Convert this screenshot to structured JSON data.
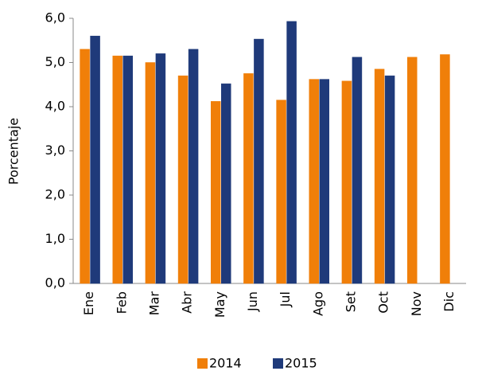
{
  "chart_data": {
    "type": "bar",
    "y_label": "Porcentaje",
    "categories": [
      "Ene",
      "Feb",
      "Mar",
      "Abr",
      "May",
      "Jun",
      "Jul",
      "Ago",
      "Set",
      "Oct",
      "Nov",
      "Dic"
    ],
    "series": [
      {
        "name": "2014",
        "color": "#f07f09",
        "values": [
          5.3,
          5.15,
          5.0,
          4.7,
          4.12,
          4.75,
          4.15,
          4.62,
          4.58,
          4.85,
          5.12,
          5.18
        ]
      },
      {
        "name": "2015",
        "color": "#1f3a7a",
        "values": [
          5.6,
          5.15,
          5.2,
          5.3,
          4.52,
          5.53,
          5.93,
          4.62,
          5.12,
          4.7,
          null,
          null
        ]
      }
    ],
    "ylim": [
      0,
      6
    ],
    "yticks": [
      {
        "value": 0,
        "label": "0,0"
      },
      {
        "value": 1,
        "label": "1,0"
      },
      {
        "value": 2,
        "label": "2,0"
      },
      {
        "value": 3,
        "label": "3,0"
      },
      {
        "value": 4,
        "label": "4,0"
      },
      {
        "value": 5,
        "label": "5,0"
      },
      {
        "value": 6,
        "label": "6,0"
      }
    ],
    "grid": false,
    "legend": "bottom"
  }
}
